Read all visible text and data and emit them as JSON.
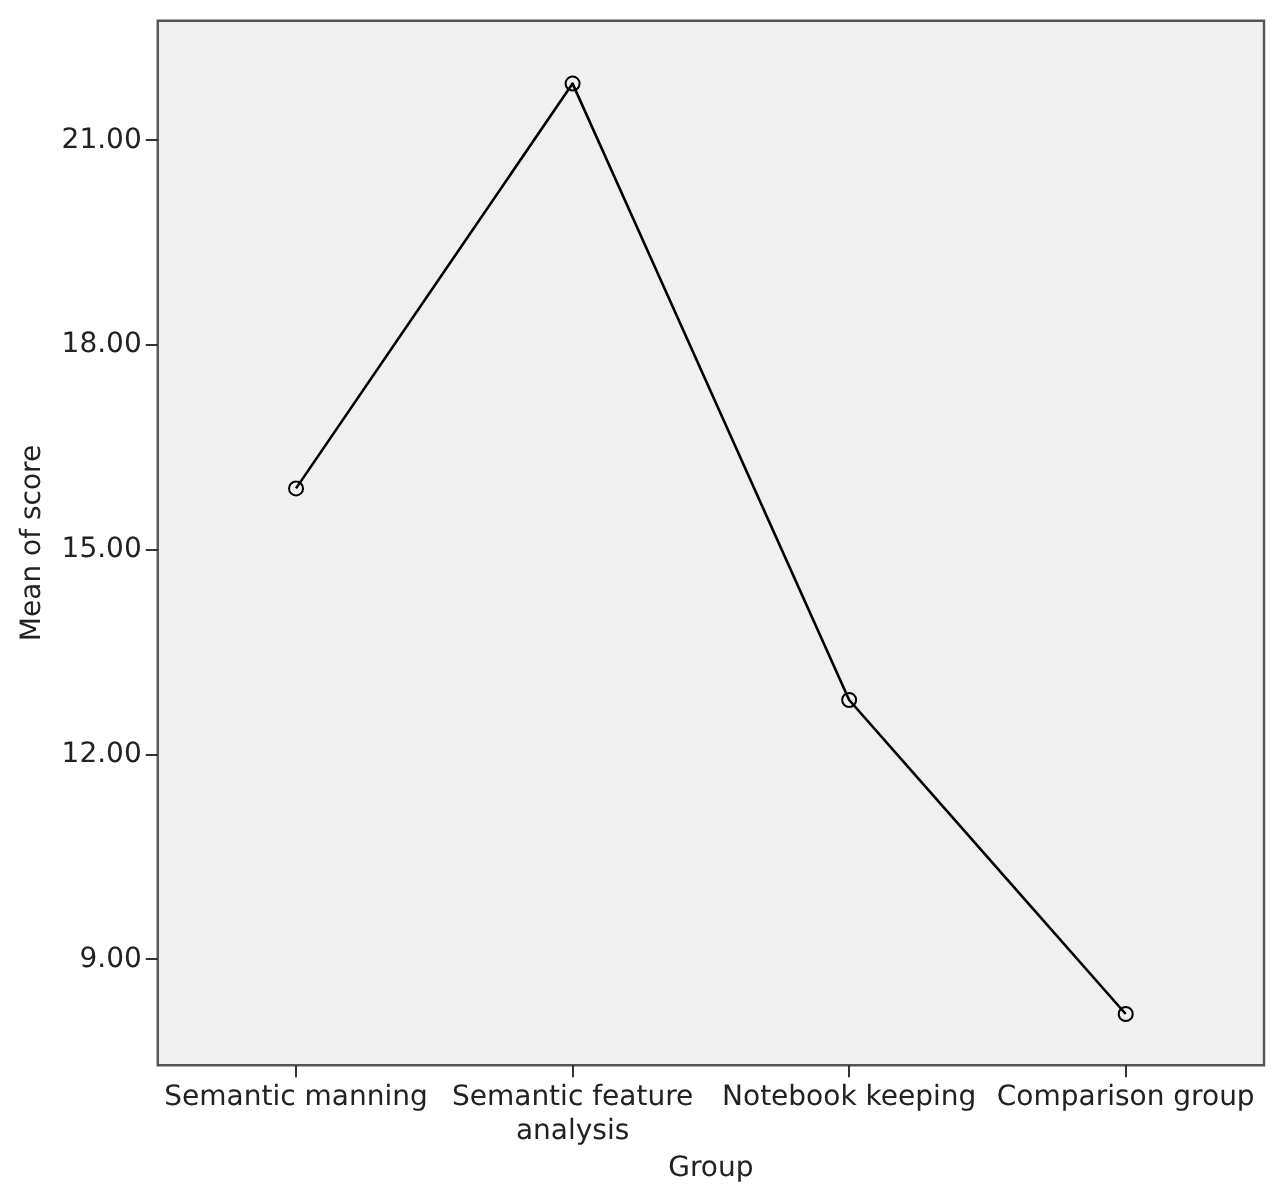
{
  "chart_data": {
    "type": "line",
    "xlabel": "Group",
    "ylabel": "Mean of score",
    "categories": [
      "Semantic manning",
      "Semantic feature analysis",
      "Notebook keeping",
      "Comparison group"
    ],
    "values": [
      15.9,
      21.83,
      12.8,
      8.2
    ],
    "color": "#000000",
    "marker": "circle",
    "line_style": "solid",
    "ylim": [
      7.45,
      22.75
    ],
    "yticks": [
      {
        "value": 9,
        "label": "9.00"
      },
      {
        "value": 12,
        "label": "12.00"
      },
      {
        "value": 15,
        "label": "15.00"
      },
      {
        "value": 18,
        "label": "18.00"
      },
      {
        "value": 21,
        "label": "21.00"
      }
    ],
    "grid": false,
    "legend": false
  }
}
